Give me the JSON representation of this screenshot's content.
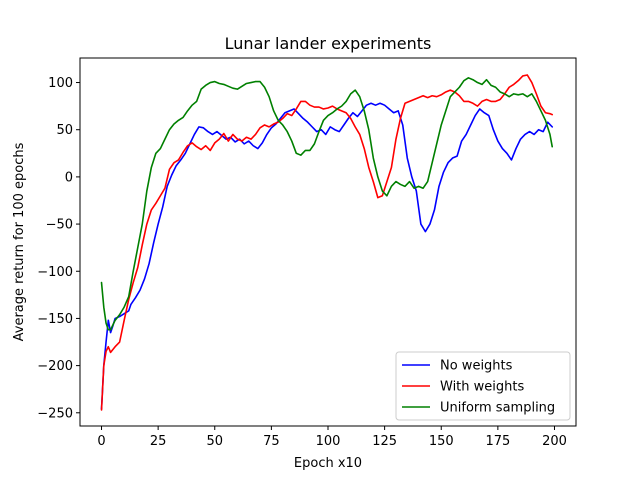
{
  "chart_data": {
    "type": "line",
    "title": "Lunar lander experiments",
    "xlabel": "Epoch x10",
    "ylabel": "Average return for 100 epochs",
    "xlim": [
      -9.5,
      209.5
    ],
    "ylim": [
      -264,
      126
    ],
    "x_ticks": [
      0,
      25,
      50,
      75,
      100,
      125,
      150,
      175,
      200
    ],
    "y_ticks": [
      -250,
      -200,
      -150,
      -100,
      -50,
      0,
      50,
      100
    ],
    "grid": false,
    "legend": "lower-right",
    "series": [
      {
        "name": "No weights",
        "color": "#0000ff",
        "points": [
          [
            0,
            -246
          ],
          [
            1,
            -200
          ],
          [
            2,
            -175
          ],
          [
            3,
            -152
          ],
          [
            4,
            -165
          ],
          [
            5,
            -158
          ],
          [
            6,
            -150
          ],
          [
            8,
            -148
          ],
          [
            10,
            -145
          ],
          [
            12,
            -142
          ],
          [
            13,
            -135
          ],
          [
            15,
            -128
          ],
          [
            17,
            -120
          ],
          [
            19,
            -108
          ],
          [
            21,
            -92
          ],
          [
            23,
            -70
          ],
          [
            25,
            -50
          ],
          [
            27,
            -32
          ],
          [
            29,
            -10
          ],
          [
            31,
            2
          ],
          [
            33,
            12
          ],
          [
            35,
            18
          ],
          [
            37,
            25
          ],
          [
            39,
            35
          ],
          [
            41,
            45
          ],
          [
            43,
            53
          ],
          [
            45,
            52
          ],
          [
            47,
            48
          ],
          [
            49,
            45
          ],
          [
            51,
            48
          ],
          [
            53,
            44
          ],
          [
            55,
            40
          ],
          [
            57,
            42
          ],
          [
            59,
            37
          ],
          [
            61,
            40
          ],
          [
            63,
            35
          ],
          [
            65,
            38
          ],
          [
            67,
            33
          ],
          [
            69,
            30
          ],
          [
            71,
            36
          ],
          [
            73,
            45
          ],
          [
            75,
            52
          ],
          [
            77,
            56
          ],
          [
            79,
            62
          ],
          [
            81,
            68
          ],
          [
            83,
            70
          ],
          [
            85,
            72
          ],
          [
            87,
            67
          ],
          [
            89,
            62
          ],
          [
            91,
            58
          ],
          [
            93,
            53
          ],
          [
            95,
            48
          ],
          [
            97,
            50
          ],
          [
            99,
            45
          ],
          [
            101,
            53
          ],
          [
            103,
            50
          ],
          [
            105,
            48
          ],
          [
            107,
            55
          ],
          [
            109,
            62
          ],
          [
            111,
            68
          ],
          [
            113,
            64
          ],
          [
            115,
            70
          ],
          [
            117,
            76
          ],
          [
            119,
            78
          ],
          [
            121,
            76
          ],
          [
            123,
            78
          ],
          [
            125,
            76
          ],
          [
            127,
            72
          ],
          [
            129,
            68
          ],
          [
            131,
            70
          ],
          [
            133,
            55
          ],
          [
            135,
            20
          ],
          [
            137,
            0
          ],
          [
            139,
            -15
          ],
          [
            141,
            -50
          ],
          [
            143,
            -58
          ],
          [
            145,
            -50
          ],
          [
            147,
            -35
          ],
          [
            149,
            -10
          ],
          [
            151,
            5
          ],
          [
            153,
            15
          ],
          [
            155,
            20
          ],
          [
            157,
            22
          ],
          [
            159,
            38
          ],
          [
            161,
            45
          ],
          [
            163,
            55
          ],
          [
            165,
            65
          ],
          [
            167,
            72
          ],
          [
            169,
            68
          ],
          [
            171,
            65
          ],
          [
            173,
            50
          ],
          [
            175,
            38
          ],
          [
            177,
            30
          ],
          [
            179,
            25
          ],
          [
            181,
            18
          ],
          [
            183,
            30
          ],
          [
            185,
            40
          ],
          [
            187,
            45
          ],
          [
            189,
            48
          ],
          [
            191,
            45
          ],
          [
            193,
            50
          ],
          [
            195,
            48
          ],
          [
            197,
            58
          ],
          [
            199,
            53
          ]
        ]
      },
      {
        "name": "With weights",
        "color": "#ff0000",
        "points": [
          [
            0,
            -247
          ],
          [
            1,
            -200
          ],
          [
            2,
            -185
          ],
          [
            3,
            -180
          ],
          [
            4,
            -186
          ],
          [
            6,
            -180
          ],
          [
            8,
            -175
          ],
          [
            10,
            -152
          ],
          [
            12,
            -130
          ],
          [
            14,
            -112
          ],
          [
            16,
            -96
          ],
          [
            18,
            -72
          ],
          [
            20,
            -50
          ],
          [
            22,
            -35
          ],
          [
            24,
            -28
          ],
          [
            26,
            -20
          ],
          [
            28,
            -12
          ],
          [
            30,
            8
          ],
          [
            32,
            15
          ],
          [
            34,
            18
          ],
          [
            36,
            26
          ],
          [
            38,
            33
          ],
          [
            40,
            36
          ],
          [
            42,
            32
          ],
          [
            44,
            29
          ],
          [
            46,
            33
          ],
          [
            48,
            28
          ],
          [
            50,
            36
          ],
          [
            52,
            40
          ],
          [
            54,
            46
          ],
          [
            56,
            38
          ],
          [
            58,
            45
          ],
          [
            60,
            40
          ],
          [
            62,
            38
          ],
          [
            64,
            42
          ],
          [
            66,
            40
          ],
          [
            68,
            45
          ],
          [
            70,
            52
          ],
          [
            72,
            55
          ],
          [
            74,
            53
          ],
          [
            76,
            56
          ],
          [
            78,
            58
          ],
          [
            80,
            62
          ],
          [
            82,
            67
          ],
          [
            84,
            65
          ],
          [
            86,
            72
          ],
          [
            88,
            80
          ],
          [
            90,
            80
          ],
          [
            92,
            76
          ],
          [
            94,
            74
          ],
          [
            96,
            74
          ],
          [
            98,
            72
          ],
          [
            100,
            73
          ],
          [
            102,
            75
          ],
          [
            104,
            72
          ],
          [
            106,
            70
          ],
          [
            108,
            68
          ],
          [
            110,
            62
          ],
          [
            112,
            53
          ],
          [
            114,
            45
          ],
          [
            116,
            30
          ],
          [
            118,
            10
          ],
          [
            120,
            -5
          ],
          [
            122,
            -22
          ],
          [
            124,
            -20
          ],
          [
            126,
            -5
          ],
          [
            128,
            10
          ],
          [
            130,
            40
          ],
          [
            132,
            62
          ],
          [
            134,
            78
          ],
          [
            136,
            80
          ],
          [
            138,
            82
          ],
          [
            140,
            84
          ],
          [
            142,
            86
          ],
          [
            144,
            84
          ],
          [
            146,
            86
          ],
          [
            148,
            85
          ],
          [
            150,
            87
          ],
          [
            152,
            90
          ],
          [
            154,
            92
          ],
          [
            156,
            90
          ],
          [
            158,
            86
          ],
          [
            160,
            80
          ],
          [
            162,
            80
          ],
          [
            164,
            78
          ],
          [
            166,
            75
          ],
          [
            168,
            80
          ],
          [
            170,
            82
          ],
          [
            172,
            80
          ],
          [
            174,
            80
          ],
          [
            176,
            82
          ],
          [
            178,
            88
          ],
          [
            180,
            95
          ],
          [
            182,
            98
          ],
          [
            184,
            102
          ],
          [
            186,
            107
          ],
          [
            188,
            108
          ],
          [
            190,
            100
          ],
          [
            192,
            88
          ],
          [
            194,
            75
          ],
          [
            196,
            68
          ],
          [
            198,
            67
          ],
          [
            199,
            66
          ]
        ]
      },
      {
        "name": "Uniform sampling",
        "color": "#008000",
        "points": [
          [
            0,
            -112
          ],
          [
            1,
            -138
          ],
          [
            2,
            -155
          ],
          [
            3,
            -162
          ],
          [
            4,
            -162
          ],
          [
            6,
            -152
          ],
          [
            8,
            -146
          ],
          [
            10,
            -138
          ],
          [
            12,
            -127
          ],
          [
            14,
            -100
          ],
          [
            16,
            -75
          ],
          [
            18,
            -50
          ],
          [
            20,
            -15
          ],
          [
            22,
            10
          ],
          [
            24,
            25
          ],
          [
            26,
            30
          ],
          [
            28,
            40
          ],
          [
            30,
            50
          ],
          [
            32,
            56
          ],
          [
            34,
            60
          ],
          [
            36,
            63
          ],
          [
            38,
            70
          ],
          [
            40,
            76
          ],
          [
            42,
            80
          ],
          [
            44,
            93
          ],
          [
            46,
            97
          ],
          [
            48,
            100
          ],
          [
            50,
            101
          ],
          [
            52,
            99
          ],
          [
            54,
            98
          ],
          [
            56,
            96
          ],
          [
            58,
            94
          ],
          [
            60,
            93
          ],
          [
            62,
            96
          ],
          [
            64,
            99
          ],
          [
            66,
            100
          ],
          [
            68,
            101
          ],
          [
            70,
            101
          ],
          [
            72,
            95
          ],
          [
            74,
            85
          ],
          [
            76,
            70
          ],
          [
            78,
            60
          ],
          [
            80,
            55
          ],
          [
            82,
            48
          ],
          [
            84,
            38
          ],
          [
            86,
            25
          ],
          [
            88,
            23
          ],
          [
            90,
            28
          ],
          [
            92,
            28
          ],
          [
            94,
            35
          ],
          [
            96,
            48
          ],
          [
            98,
            60
          ],
          [
            100,
            65
          ],
          [
            102,
            68
          ],
          [
            104,
            72
          ],
          [
            106,
            75
          ],
          [
            108,
            80
          ],
          [
            110,
            88
          ],
          [
            112,
            92
          ],
          [
            114,
            85
          ],
          [
            116,
            70
          ],
          [
            118,
            50
          ],
          [
            120,
            20
          ],
          [
            122,
            0
          ],
          [
            124,
            -15
          ],
          [
            126,
            -20
          ],
          [
            128,
            -10
          ],
          [
            130,
            -5
          ],
          [
            132,
            -8
          ],
          [
            134,
            -10
          ],
          [
            136,
            -5
          ],
          [
            138,
            -12
          ],
          [
            140,
            -10
          ],
          [
            142,
            -12
          ],
          [
            144,
            -5
          ],
          [
            146,
            15
          ],
          [
            148,
            35
          ],
          [
            150,
            55
          ],
          [
            152,
            70
          ],
          [
            154,
            85
          ],
          [
            156,
            90
          ],
          [
            158,
            95
          ],
          [
            160,
            102
          ],
          [
            162,
            105
          ],
          [
            164,
            103
          ],
          [
            166,
            100
          ],
          [
            168,
            98
          ],
          [
            170,
            103
          ],
          [
            172,
            97
          ],
          [
            174,
            95
          ],
          [
            176,
            90
          ],
          [
            178,
            88
          ],
          [
            180,
            85
          ],
          [
            182,
            88
          ],
          [
            184,
            87
          ],
          [
            186,
            88
          ],
          [
            188,
            85
          ],
          [
            190,
            88
          ],
          [
            192,
            80
          ],
          [
            194,
            70
          ],
          [
            196,
            60
          ],
          [
            198,
            45
          ],
          [
            199,
            32
          ]
        ]
      }
    ]
  }
}
